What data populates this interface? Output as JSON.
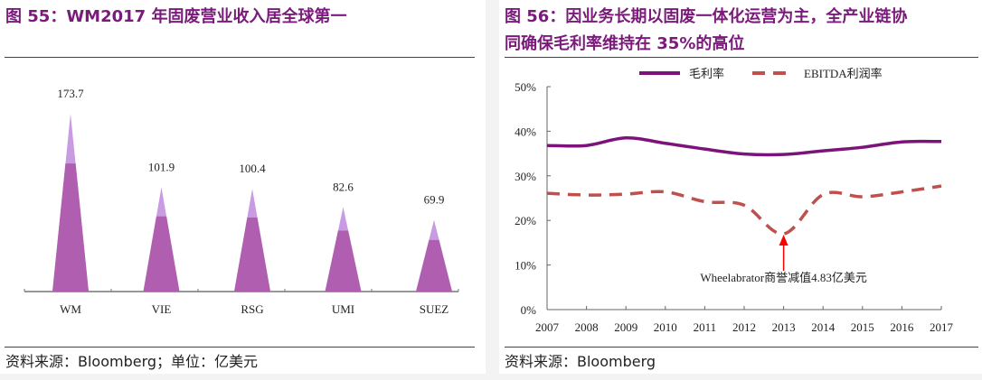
{
  "left": {
    "title": "图 55：WM2017 年固废营业收入居全球第一",
    "source": "资料来源：Bloomberg；单位：亿美元",
    "chart_data": {
      "type": "bar",
      "categories": [
        "WM",
        "VIE",
        "RSG",
        "UMI",
        "SUEZ"
      ],
      "values": [
        173.7,
        101.9,
        100.4,
        82.6,
        69.9
      ],
      "data_labels": [
        "173.7",
        "101.9",
        "100.4",
        "82.6",
        "69.9"
      ],
      "bar_style": "triangle-peak",
      "colors": {
        "fill": "#b05fb0",
        "tip": "#c99be3"
      }
    }
  },
  "right": {
    "title_line1": "图 56：因业务长期以固废一体化运营为主，全产业链协",
    "title_line2": "同确保毛利率维持在 35%的高位",
    "source": "资料来源：Bloomberg",
    "chart_data": {
      "type": "line",
      "x": [
        "2007",
        "2008",
        "2009",
        "2010",
        "2011",
        "2012",
        "2013",
        "2014",
        "2015",
        "2016",
        "2017"
      ],
      "ylim": [
        0,
        50
      ],
      "yticks": [
        "0%",
        "10%",
        "20%",
        "30%",
        "40%",
        "50%"
      ],
      "legend_position": "top",
      "series": [
        {
          "name": "毛利率",
          "style": "solid",
          "color": "#7b137b",
          "values": [
            36.8,
            36.8,
            38.5,
            37.3,
            36.0,
            34.9,
            34.8,
            35.6,
            36.4,
            37.6,
            37.7
          ]
        },
        {
          "name": "EBITDA利润率",
          "style": "dashed",
          "color": "#c0504d",
          "values": [
            26.1,
            25.7,
            25.9,
            26.4,
            24.2,
            23.4,
            17.0,
            25.8,
            25.3,
            26.4,
            27.7
          ]
        }
      ],
      "annotation": {
        "text": "Wheelabrator商誉减值4.83亿美元",
        "x": "2013",
        "color": "#ff0000"
      }
    }
  }
}
